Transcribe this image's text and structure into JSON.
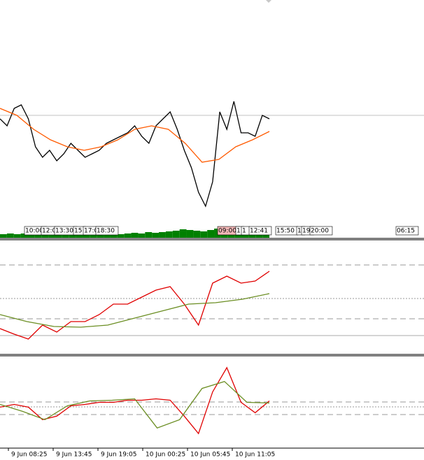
{
  "chart_data": [
    {
      "type": "line",
      "ylim": [
        0,
        340
      ],
      "series": [
        {
          "color": "#000000",
          "values": [
            170,
            160,
            185,
            190,
            170,
            130,
            115,
            125,
            110,
            120,
            135,
            125,
            115,
            120,
            125,
            135,
            140,
            145,
            150,
            160,
            145,
            135,
            160,
            170,
            180,
            155,
            125,
            100,
            65,
            45,
            80,
            180,
            155,
            195,
            150,
            150,
            145,
            175,
            170
          ]
        },
        {
          "color": "#ff5a00",
          "values": [
            185,
            175,
            155,
            140,
            130,
            125,
            130,
            140,
            155,
            160,
            155,
            135,
            108,
            112,
            130,
            140,
            152
          ]
        }
      ],
      "volume": {
        "color": "#008000",
        "values": [
          5,
          6,
          5,
          6,
          7,
          6,
          5,
          6,
          6,
          7,
          5,
          6,
          6,
          5,
          6,
          7,
          6,
          5,
          6,
          7,
          6,
          8,
          7,
          8,
          9,
          10,
          12,
          11,
          10,
          9,
          11,
          13,
          12,
          14,
          12,
          11,
          13,
          15,
          10
        ]
      },
      "session_labels": [
        "10:00",
        "12:0",
        "13:30",
        "15",
        "17:0",
        "18:30",
        "09:00",
        "1",
        "1",
        "12:41",
        "15:50",
        "1",
        "19",
        "20:00",
        "06:15"
      ]
    },
    {
      "type": "line",
      "ylim": [
        0,
        162
      ],
      "series": [
        {
          "color": "#e00000",
          "values": [
            36,
            28,
            21,
            41,
            31,
            46,
            46,
            56,
            71,
            71,
            81,
            91,
            96,
            71,
            41,
            101,
            111,
            101,
            104,
            118
          ]
        },
        {
          "color": "#6b8e23",
          "values": [
            56,
            46,
            39,
            38,
            41,
            51,
            61,
            71,
            73,
            78,
            86
          ]
        }
      ]
    },
    {
      "type": "line",
      "ylim": [
        0,
        131
      ],
      "series": [
        {
          "color": "#e00000",
          "values": [
            58,
            62,
            58,
            40,
            45,
            60,
            62,
            65,
            65,
            68,
            68,
            70,
            68,
            45,
            20,
            80,
            115,
            65,
            50,
            67
          ]
        },
        {
          "color": "#6b8e23",
          "values": [
            62,
            52,
            40,
            60,
            67,
            68,
            70,
            28,
            40,
            85,
            95,
            65,
            64
          ]
        }
      ],
      "x_labels": [
        "9 Jun 08:25",
        "9 Jun 13:45",
        "9 Jun 19:05",
        "10 Jun 00:25",
        "10 Jun 05:45",
        "10 Jun 11:05"
      ]
    }
  ]
}
